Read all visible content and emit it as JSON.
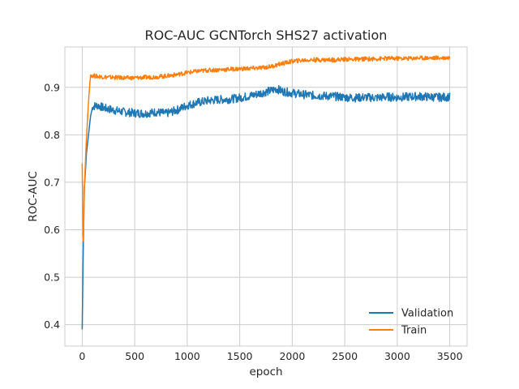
{
  "chart_data": {
    "type": "line",
    "title": "ROC-AUC GCNTorch SHS27 activation",
    "xlabel": "epoch",
    "ylabel": "ROC-AUC",
    "xlim": [
      -165,
      3665
    ],
    "ylim": [
      0.355,
      0.985
    ],
    "xticks": [
      0,
      500,
      1000,
      1500,
      2000,
      2500,
      3000,
      3500
    ],
    "yticks": [
      0.4,
      0.5,
      0.6,
      0.7,
      0.8,
      0.9
    ],
    "grid": true,
    "legend_position": "lower-right",
    "series": [
      {
        "name": "Validation",
        "color": "#1f77b4",
        "x": [
          0,
          10,
          20,
          30,
          40,
          50,
          60,
          70,
          80,
          100,
          150,
          200,
          300,
          400,
          500,
          600,
          700,
          800,
          900,
          1000,
          1100,
          1200,
          1300,
          1400,
          1500,
          1600,
          1700,
          1800,
          1850,
          1900,
          2000,
          2100,
          2200,
          2300,
          2400,
          2500,
          2600,
          2700,
          2800,
          2900,
          3000,
          3100,
          3200,
          3300,
          3400,
          3500
        ],
        "y": [
          0.39,
          0.56,
          0.69,
          0.72,
          0.76,
          0.78,
          0.8,
          0.82,
          0.84,
          0.86,
          0.862,
          0.857,
          0.852,
          0.848,
          0.846,
          0.845,
          0.848,
          0.845,
          0.852,
          0.862,
          0.868,
          0.872,
          0.874,
          0.875,
          0.878,
          0.882,
          0.888,
          0.893,
          0.897,
          0.892,
          0.888,
          0.885,
          0.883,
          0.882,
          0.881,
          0.879,
          0.878,
          0.879,
          0.878,
          0.88,
          0.879,
          0.88,
          0.881,
          0.88,
          0.879,
          0.88
        ]
      },
      {
        "name": "Train",
        "color": "#ff7f0e",
        "x": [
          0,
          10,
          20,
          30,
          40,
          50,
          60,
          70,
          80,
          100,
          150,
          200,
          300,
          400,
          500,
          600,
          700,
          800,
          900,
          1000,
          1100,
          1200,
          1300,
          1400,
          1500,
          1600,
          1700,
          1800,
          1900,
          2000,
          2100,
          2200,
          2300,
          2400,
          2500,
          2600,
          2700,
          2800,
          2900,
          3000,
          3100,
          3200,
          3300,
          3400,
          3500
        ],
        "y": [
          0.74,
          0.55,
          0.68,
          0.74,
          0.79,
          0.83,
          0.87,
          0.9,
          0.926,
          0.925,
          0.923,
          0.922,
          0.921,
          0.92,
          0.92,
          0.921,
          0.922,
          0.924,
          0.927,
          0.931,
          0.934,
          0.936,
          0.937,
          0.938,
          0.939,
          0.94,
          0.941,
          0.944,
          0.95,
          0.955,
          0.957,
          0.958,
          0.958,
          0.958,
          0.959,
          0.959,
          0.96,
          0.96,
          0.961,
          0.961,
          0.961,
          0.962,
          0.962,
          0.962,
          0.963
        ]
      }
    ]
  }
}
